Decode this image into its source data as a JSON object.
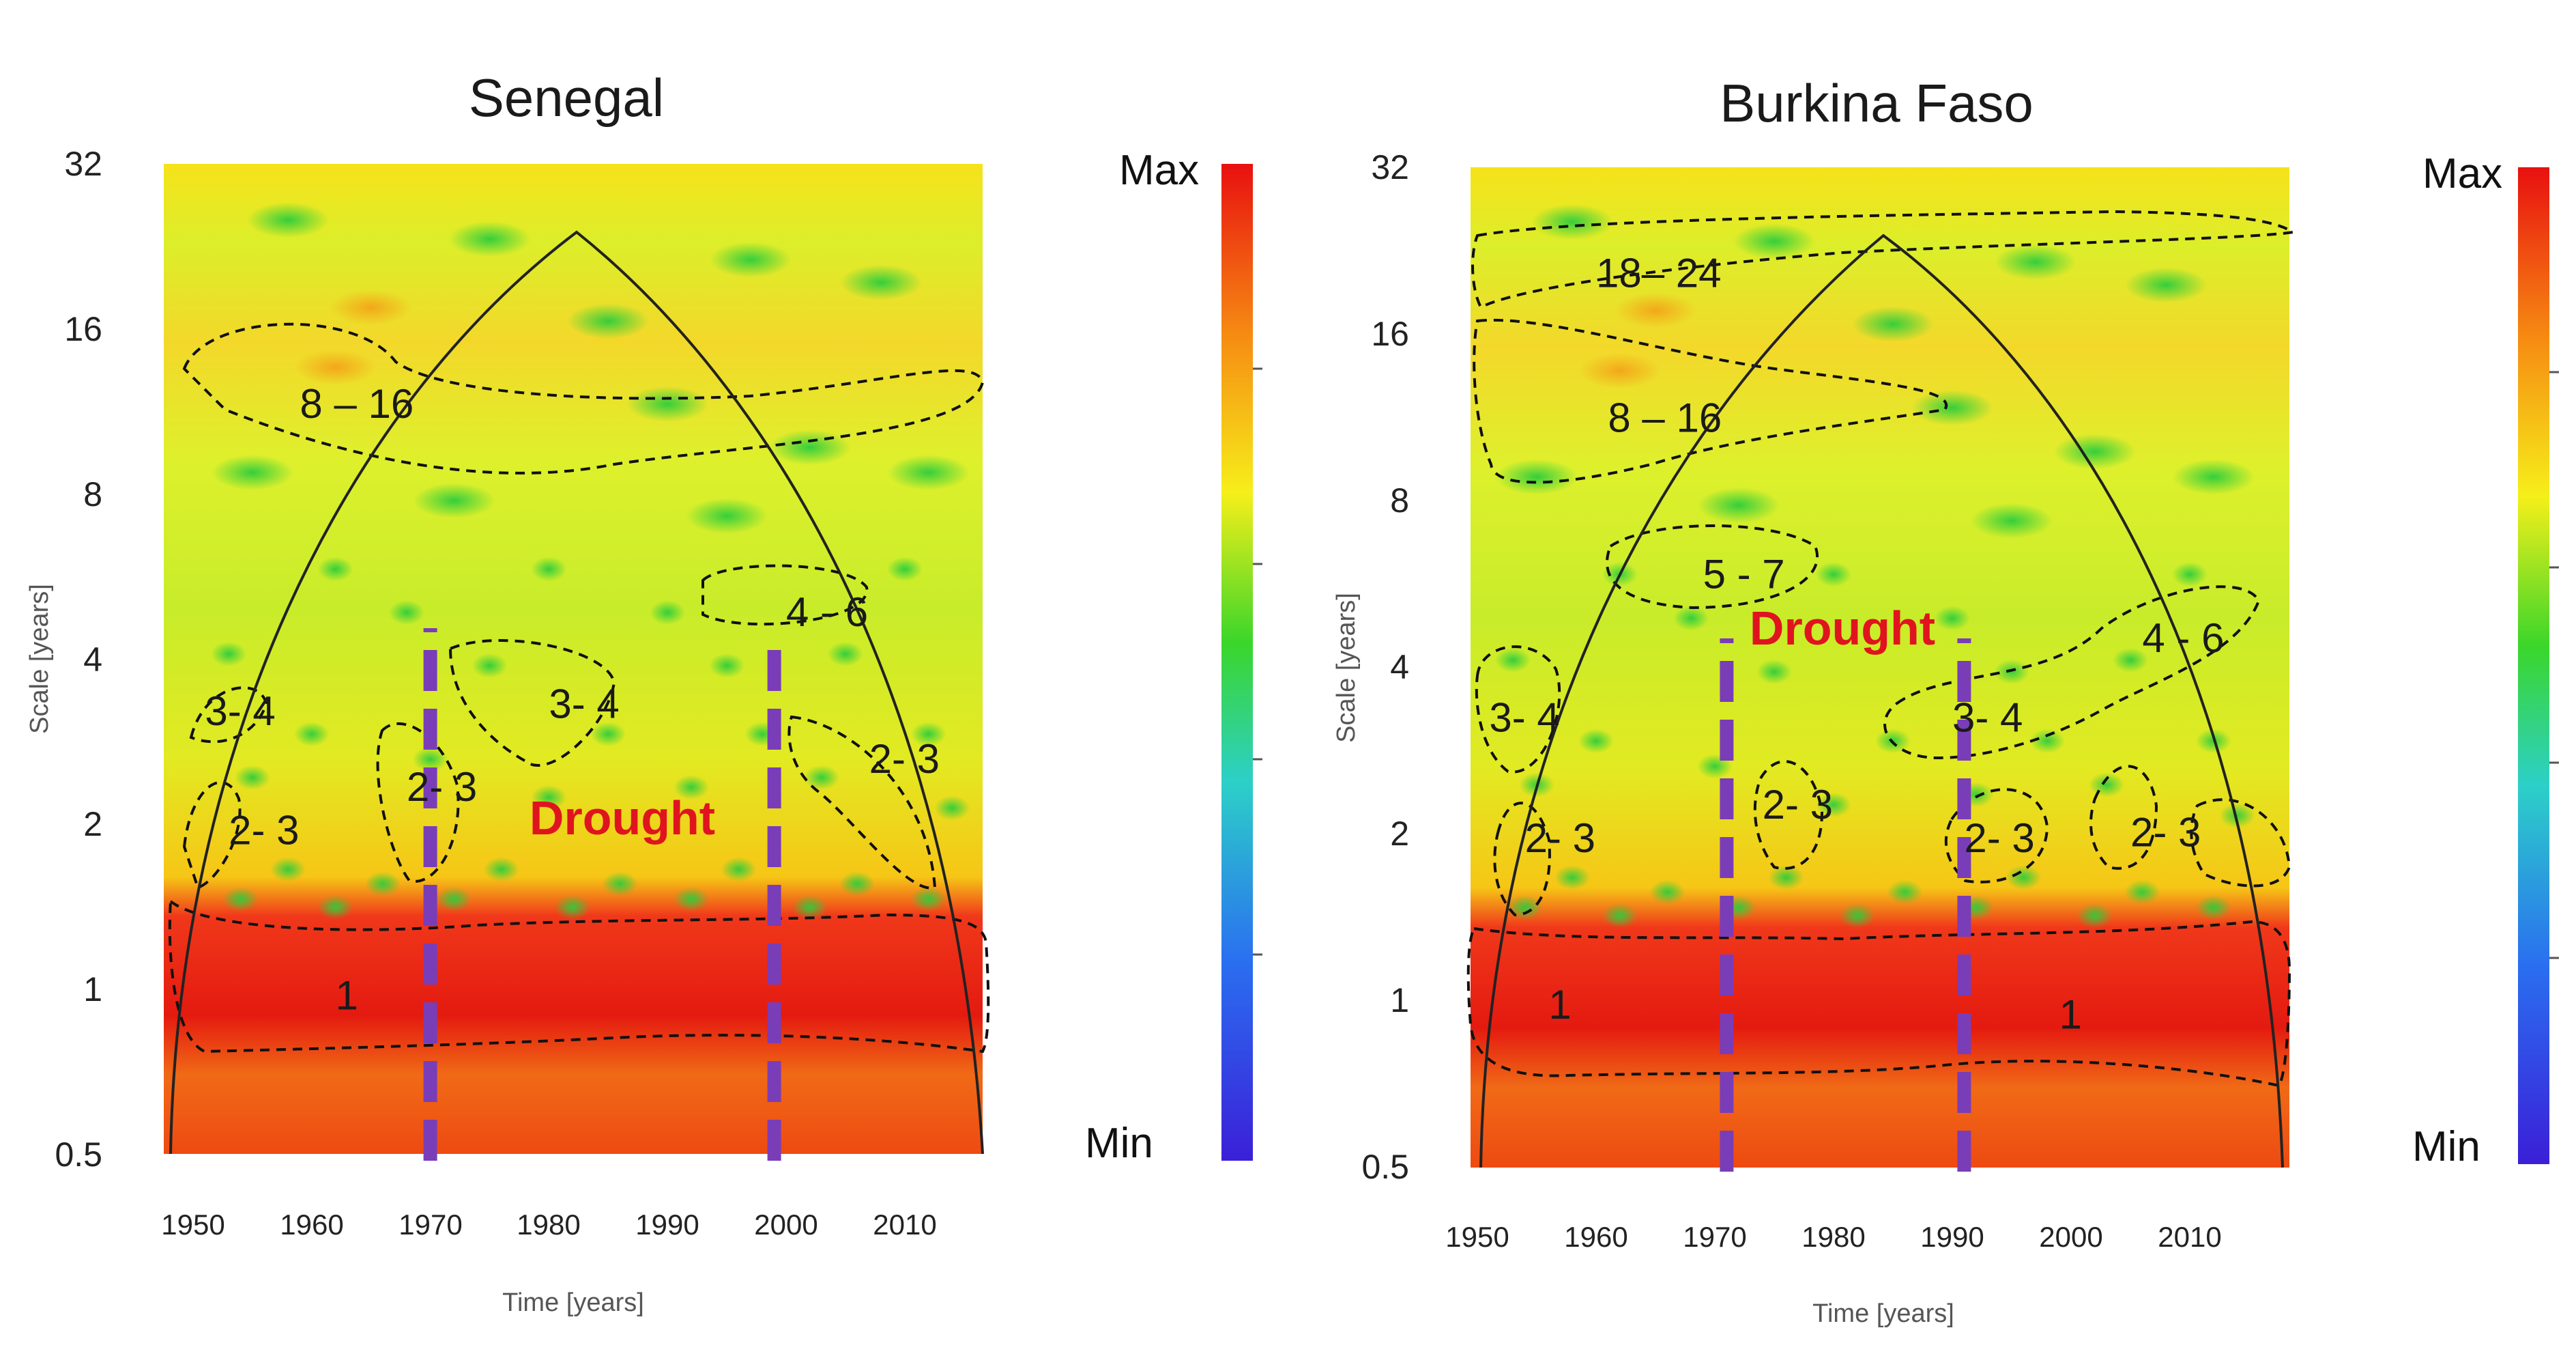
{
  "chart_data": [
    {
      "type": "heatmap",
      "subtype": "wavelet power spectrum",
      "title": "Senegal",
      "xlabel": "Time [years]",
      "ylabel": "Scale [years]",
      "x_ticks": [
        "1950",
        "1960",
        "1970",
        "1980",
        "1990",
        "2000",
        "2010"
      ],
      "y_ticks": [
        "0.5",
        "1",
        "2",
        "4",
        "8",
        "16",
        "32"
      ],
      "xlim": [
        1948,
        2017
      ],
      "ylim": [
        0.5,
        32
      ],
      "colorbar": {
        "max_label": "Max",
        "min_label": "Min"
      },
      "band_labels": [
        {
          "text": "8 – 16",
          "year": 1959,
          "scale": 12.0
        },
        {
          "text": "4 - 6",
          "year": 2000,
          "scale": 5.0
        },
        {
          "text": "3- 4",
          "year": 1951,
          "scale": 3.3
        },
        {
          "text": "3- 4",
          "year": 1980,
          "scale": 3.4
        },
        {
          "text": "2- 3",
          "year": 1953,
          "scale": 2.0
        },
        {
          "text": "2- 3",
          "year": 1968,
          "scale": 2.4
        },
        {
          "text": "2- 3",
          "year": 2007,
          "scale": 2.7
        },
        {
          "text": "1",
          "year": 1962,
          "scale": 1.0
        }
      ],
      "drought_label": "Drought",
      "drought_label_pos": {
        "year": 1986,
        "scale": 2.0
      },
      "drought_lines": [
        1970,
        1999
      ]
    },
    {
      "type": "heatmap",
      "subtype": "wavelet power spectrum",
      "title": "Burkina Faso",
      "xlabel": "Time [years]",
      "ylabel": "Scale [years]",
      "x_ticks": [
        "1950",
        "1960",
        "1970",
        "1980",
        "1990",
        "2000",
        "2010"
      ],
      "y_ticks": [
        "0.5",
        "1",
        "2",
        "4",
        "8",
        "16",
        "32"
      ],
      "xlim": [
        1948,
        2017
      ],
      "ylim": [
        0.5,
        32
      ],
      "colorbar": {
        "max_label": "Max",
        "min_label": "Min"
      },
      "band_labels": [
        {
          "text": "18– 24",
          "year": 1960,
          "scale": 21.0
        },
        {
          "text": "8 – 16",
          "year": 1961,
          "scale": 11.5
        },
        {
          "text": "5 - 7",
          "year": 1969,
          "scale": 6.0
        },
        {
          "text": "4 - 6",
          "year": 2006,
          "scale": 4.6
        },
        {
          "text": "3- 4",
          "year": 1951,
          "scale": 3.3
        },
        {
          "text": "3- 4",
          "year": 1990,
          "scale": 3.3
        },
        {
          "text": "2- 3",
          "year": 1954,
          "scale": 2.0
        },
        {
          "text": "2- 3",
          "year": 1974,
          "scale": 2.3
        },
        {
          "text": "2- 3",
          "year": 1991,
          "scale": 2.0
        },
        {
          "text": "2- 3",
          "year": 2005,
          "scale": 2.05
        },
        {
          "text": "1",
          "year": 1956,
          "scale": 1.0
        },
        {
          "text": "1",
          "year": 1999,
          "scale": 0.96
        }
      ],
      "drought_label": "Drought",
      "drought_label_pos": {
        "year": 1980,
        "scale": 4.5
      },
      "drought_lines": [
        1971,
        1991
      ]
    }
  ],
  "colors": {
    "drought_line": "#7a3db8",
    "drought_text": "#e0141e",
    "spectrum_high": "#e41a10",
    "spectrum_mid": "#f7e51a",
    "spectrum_low": "#3fcc2c"
  }
}
